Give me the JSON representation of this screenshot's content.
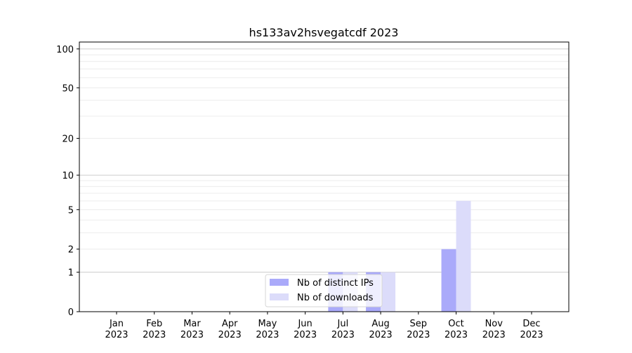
{
  "chart_data": {
    "type": "bar",
    "title": "hs133av2hsvegatcdf 2023",
    "xlabel": "",
    "ylabel": "",
    "yscale": "log(1+y)",
    "ylim": [
      0,
      113
    ],
    "yticks": [
      0,
      1,
      2,
      5,
      10,
      20,
      50,
      100
    ],
    "grid": true,
    "legend_position": "bottom-center",
    "categories": [
      "Jan\n2023",
      "Feb\n2023",
      "Mar\n2023",
      "Apr\n2023",
      "May\n2023",
      "Jun\n2023",
      "Jul\n2023",
      "Aug\n2023",
      "Sep\n2023",
      "Oct\n2023",
      "Nov\n2023",
      "Dec\n2023"
    ],
    "series": [
      {
        "name": "Nb of distinct IPs",
        "color": "#aaaafa",
        "values": [
          0,
          0,
          0,
          0,
          0,
          0,
          1,
          1,
          0,
          2,
          0,
          0
        ]
      },
      {
        "name": "Nb of downloads",
        "color": "#dcdcfa",
        "values": [
          0,
          0,
          0,
          0,
          0,
          0,
          1,
          1,
          0,
          6,
          0,
          0
        ]
      }
    ]
  }
}
